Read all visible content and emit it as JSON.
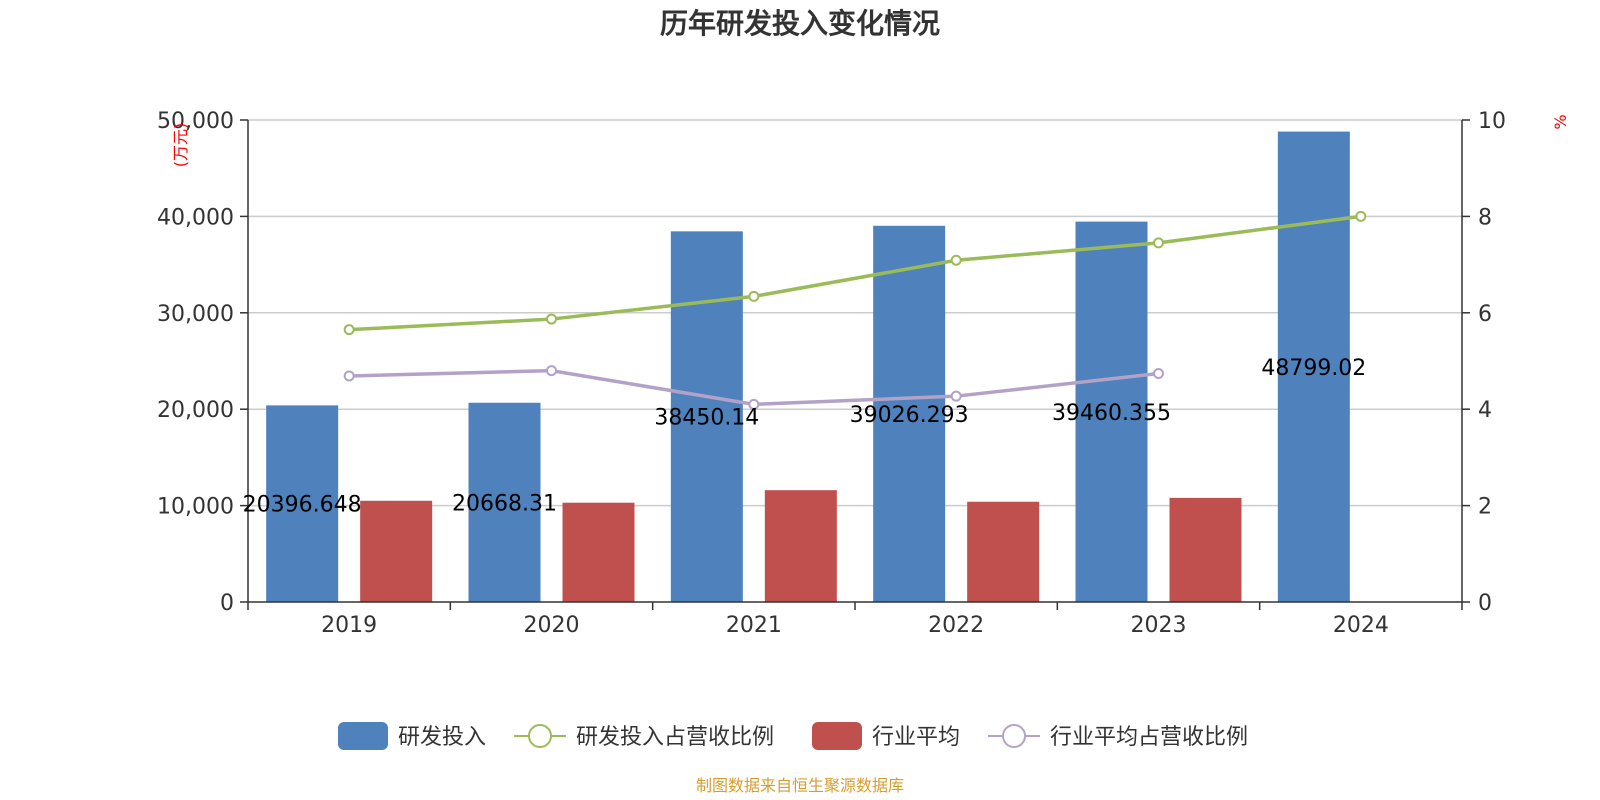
{
  "chart_data": {
    "type": "bar",
    "title": "历年研发投入变化情况",
    "categories": [
      "2019",
      "2020",
      "2021",
      "2022",
      "2023",
      "2024"
    ],
    "y_left": {
      "unit": "(万元)",
      "range": [
        0,
        50000
      ],
      "ticks": [
        "0",
        "10,000",
        "20,000",
        "30,000",
        "40,000",
        "50,000"
      ]
    },
    "y_right": {
      "unit": "%",
      "range": [
        0,
        10
      ],
      "ticks": [
        "0",
        "2",
        "4",
        "6",
        "8",
        "10"
      ]
    },
    "grid": true,
    "legend_position": "bottom",
    "bar_series": [
      {
        "name": "研发投入",
        "color": "#4f81bd",
        "values": [
          20396.648,
          20668.31,
          38450.14,
          39026.293,
          39460.355,
          48799.02
        ],
        "labels": [
          "20396.648",
          "20668.31",
          "38450.14",
          "39026.293",
          "39460.355",
          "48799.02"
        ]
      },
      {
        "name": "行业平均",
        "color": "#c0504d",
        "values": [
          10500,
          10300,
          11600,
          10400,
          10800,
          null
        ]
      }
    ],
    "line_series": [
      {
        "name": "研发投入占营收比例",
        "color": "#9bbb59",
        "axis": "right",
        "values": [
          5.65,
          5.87,
          6.34,
          7.09,
          7.45,
          8.0
        ]
      },
      {
        "name": "行业平均占营收比例",
        "color": "#b3a2c7",
        "axis": "right",
        "values": [
          4.69,
          4.8,
          4.1,
          4.27,
          4.74,
          null
        ]
      }
    ],
    "source": "制图数据来自恒生聚源数据库",
    "unit_color": "#ff0000",
    "source_color": "#d59e31",
    "axis_color": "#333333",
    "grid_color": "#cccccc"
  }
}
